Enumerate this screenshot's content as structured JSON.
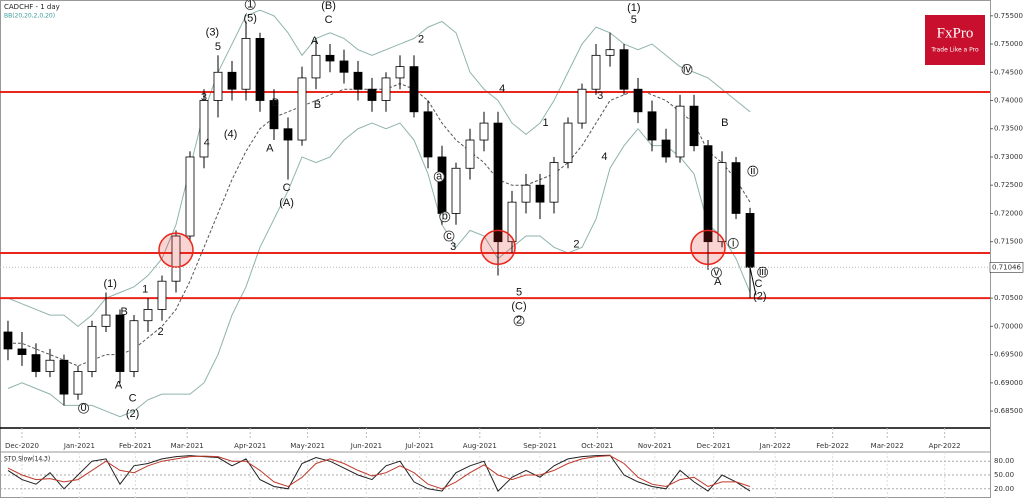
{
  "chart_data": {
    "type": "candlestick",
    "title": "CADCHF - 1 day",
    "subtitle": "BB(20,20,2,0,20)",
    "logo": {
      "name": "FxPro",
      "tagline": "Trade Like a Pro"
    },
    "x": [
      0,
      1,
      2,
      3,
      4,
      5,
      6,
      7,
      8,
      9,
      10,
      11,
      12,
      13,
      14,
      15,
      16,
      17,
      18,
      19,
      20,
      21,
      22,
      23,
      24,
      25,
      26,
      27,
      28,
      29,
      30,
      31,
      32,
      33,
      34,
      35,
      36,
      37,
      38,
      39,
      40,
      41,
      42,
      43,
      44,
      45,
      46,
      47,
      48,
      49,
      50,
      51,
      52,
      53
    ],
    "xlim": [
      -0.57,
      70.14
    ],
    "xticks": [
      {
        "value": 1.0,
        "label": "Dec-2020"
      },
      {
        "value": 5.1,
        "label": "Jan-2021"
      },
      {
        "value": 9.1,
        "label": "Feb-2021"
      },
      {
        "value": 12.8,
        "label": "Mar-2021"
      },
      {
        "value": 17.3,
        "label": "Apr-2021"
      },
      {
        "value": 21.4,
        "label": "May-2021"
      },
      {
        "value": 25.6,
        "label": "Jun-2021"
      },
      {
        "value": 29.4,
        "label": "Jul-2021"
      },
      {
        "value": 33.7,
        "label": "Aug-2021"
      },
      {
        "value": 38.0,
        "label": "Sep-2021"
      },
      {
        "value": 42.1,
        "label": "Oct-2021"
      },
      {
        "value": 46.2,
        "label": "Nov-2021"
      },
      {
        "value": 50.4,
        "label": "Dec-2021"
      },
      {
        "value": 54.8,
        "label": "Jan-2022"
      },
      {
        "value": 58.9,
        "label": "Feb-2022"
      },
      {
        "value": 62.8,
        "label": "Mar-2022"
      },
      {
        "value": 66.9,
        "label": "Apr-2022"
      }
    ],
    "ylim": [
      0.682,
      0.7578
    ],
    "yticks": [
      {
        "value": 0.755,
        "label": "0.75500"
      },
      {
        "value": 0.75,
        "label": "0.75000"
      },
      {
        "value": 0.745,
        "label": "0.74500"
      },
      {
        "value": 0.74,
        "label": "0.74000"
      },
      {
        "value": 0.735,
        "label": "0.73500"
      },
      {
        "value": 0.73,
        "label": "0.73000"
      },
      {
        "value": 0.725,
        "label": "0.72500"
      },
      {
        "value": 0.72,
        "label": "0.72000"
      },
      {
        "value": 0.715,
        "label": "0.71500"
      },
      {
        "value": 0.705,
        "label": "0.70500"
      },
      {
        "value": 0.7,
        "label": "0.70000"
      },
      {
        "value": 0.695,
        "label": "0.69500"
      },
      {
        "value": 0.69,
        "label": "0.69000"
      },
      {
        "value": 0.685,
        "label": "0.68500"
      }
    ],
    "open": [
      0.699,
      0.696,
      0.695,
      0.692,
      0.694,
      0.688,
      0.692,
      0.7,
      0.702,
      0.692,
      0.701,
      0.703,
      0.708,
      0.716,
      0.73,
      0.74,
      0.745,
      0.742,
      0.751,
      0.74,
      0.735,
      0.733,
      0.744,
      0.748,
      0.747,
      0.745,
      0.742,
      0.74,
      0.744,
      0.746,
      0.738,
      0.73,
      0.72,
      0.728,
      0.733,
      0.736,
      0.715,
      0.722,
      0.725,
      0.722,
      0.729,
      0.736,
      0.742,
      0.748,
      0.749,
      0.742,
      0.738,
      0.733,
      0.73,
      0.739,
      0.732,
      0.715,
      0.729,
      0.72
    ],
    "high": [
      0.701,
      0.699,
      0.697,
      0.696,
      0.695,
      0.693,
      0.701,
      0.706,
      0.703,
      0.702,
      0.705,
      0.709,
      0.717,
      0.731,
      0.742,
      0.748,
      0.747,
      0.754,
      0.752,
      0.742,
      0.737,
      0.746,
      0.751,
      0.75,
      0.749,
      0.747,
      0.744,
      0.745,
      0.748,
      0.748,
      0.74,
      0.732,
      0.729,
      0.735,
      0.738,
      0.738,
      0.724,
      0.727,
      0.727,
      0.73,
      0.737,
      0.743,
      0.75,
      0.752,
      0.75,
      0.744,
      0.74,
      0.735,
      0.741,
      0.741,
      0.733,
      0.731,
      0.73,
      0.721
    ],
    "low": [
      0.694,
      0.693,
      0.691,
      0.691,
      0.686,
      0.687,
      0.691,
      0.699,
      0.69,
      0.691,
      0.699,
      0.701,
      0.706,
      0.715,
      0.728,
      0.737,
      0.74,
      0.74,
      0.738,
      0.733,
      0.726,
      0.732,
      0.742,
      0.745,
      0.743,
      0.74,
      0.738,
      0.738,
      0.742,
      0.737,
      0.728,
      0.718,
      0.718,
      0.726,
      0.731,
      0.709,
      0.713,
      0.72,
      0.719,
      0.72,
      0.728,
      0.735,
      0.741,
      0.746,
      0.741,
      0.736,
      0.731,
      0.729,
      0.729,
      0.731,
      0.71,
      0.714,
      0.719,
      0.705
    ],
    "close": [
      0.696,
      0.695,
      0.692,
      0.694,
      0.688,
      0.692,
      0.7,
      0.702,
      0.692,
      0.701,
      0.703,
      0.708,
      0.716,
      0.73,
      0.74,
      0.745,
      0.742,
      0.751,
      0.74,
      0.735,
      0.733,
      0.744,
      0.748,
      0.747,
      0.745,
      0.742,
      0.74,
      0.744,
      0.746,
      0.738,
      0.73,
      0.72,
      0.728,
      0.733,
      0.736,
      0.715,
      0.722,
      0.725,
      0.722,
      0.729,
      0.736,
      0.742,
      0.748,
      0.749,
      0.742,
      0.738,
      0.733,
      0.73,
      0.739,
      0.732,
      0.715,
      0.729,
      0.72,
      0.71046
    ],
    "last_price": 0.71046,
    "bands": [
      {
        "name": "upper",
        "color": "#8fb3ae",
        "values": [
          0.705,
          0.704,
          0.703,
          0.702,
          0.702,
          0.7,
          0.702,
          0.705,
          0.706,
          0.707,
          0.709,
          0.712,
          0.718,
          0.728,
          0.738,
          0.745,
          0.75,
          0.755,
          0.756,
          0.755,
          0.752,
          0.748,
          0.751,
          0.752,
          0.751,
          0.749,
          0.748,
          0.749,
          0.75,
          0.751,
          0.753,
          0.754,
          0.752,
          0.745,
          0.742,
          0.74,
          0.736,
          0.734,
          0.736,
          0.74,
          0.745,
          0.75,
          0.753,
          0.752,
          0.75,
          0.749,
          0.75,
          0.748,
          0.746,
          0.745,
          0.744,
          0.742,
          0.74,
          0.738
        ]
      },
      {
        "name": "middle",
        "color": "#555555",
        "dashed": true,
        "values": [
          0.697,
          0.697,
          0.696,
          0.695,
          0.694,
          0.693,
          0.694,
          0.695,
          0.695,
          0.696,
          0.698,
          0.7,
          0.703,
          0.708,
          0.714,
          0.72,
          0.726,
          0.731,
          0.735,
          0.737,
          0.738,
          0.739,
          0.74,
          0.741,
          0.742,
          0.742,
          0.742,
          0.742,
          0.743,
          0.742,
          0.74,
          0.736,
          0.733,
          0.731,
          0.729,
          0.726,
          0.725,
          0.725,
          0.726,
          0.727,
          0.729,
          0.732,
          0.736,
          0.74,
          0.741,
          0.742,
          0.741,
          0.74,
          0.738,
          0.736,
          0.731,
          0.729,
          0.726,
          0.722
        ]
      },
      {
        "name": "lower",
        "color": "#8fb3ae",
        "values": [
          0.689,
          0.69,
          0.689,
          0.688,
          0.686,
          0.686,
          0.686,
          0.685,
          0.684,
          0.685,
          0.687,
          0.688,
          0.688,
          0.688,
          0.69,
          0.695,
          0.702,
          0.707,
          0.714,
          0.719,
          0.724,
          0.73,
          0.729,
          0.73,
          0.733,
          0.735,
          0.736,
          0.735,
          0.736,
          0.733,
          0.727,
          0.718,
          0.714,
          0.717,
          0.716,
          0.712,
          0.714,
          0.716,
          0.716,
          0.714,
          0.713,
          0.714,
          0.719,
          0.728,
          0.732,
          0.735,
          0.732,
          0.732,
          0.73,
          0.727,
          0.718,
          0.716,
          0.712,
          0.706
        ]
      }
    ],
    "levels": [
      0.7415,
      0.713,
      0.705
    ],
    "level_color": "#e8261c",
    "circles": [
      {
        "x": 12,
        "y": 0.7135
      },
      {
        "x": 35,
        "y": 0.714
      },
      {
        "x": 50,
        "y": 0.714
      }
    ],
    "annotations": [
      {
        "text": "(1)",
        "x": 7.3,
        "y": 0.7075
      },
      {
        "text": "(2)",
        "x": 8.9,
        "y": 0.6845
      },
      {
        "text": "0",
        "x": 5.4,
        "y": 0.6855,
        "circled": true
      },
      {
        "text": "A",
        "x": 7.9,
        "y": 0.6895
      },
      {
        "text": "B",
        "x": 8.3,
        "y": 0.7025
      },
      {
        "text": "C",
        "x": 8.9,
        "y": 0.6872
      },
      {
        "text": "1",
        "x": 9.8,
        "y": 0.7065
      },
      {
        "text": "2",
        "x": 10.9,
        "y": 0.699
      },
      {
        "text": "(3)",
        "x": 14.6,
        "y": 0.752
      },
      {
        "text": "5",
        "x": 15.0,
        "y": 0.7495
      },
      {
        "text": "3",
        "x": 14.0,
        "y": 0.7405
      },
      {
        "text": "4",
        "x": 14.2,
        "y": 0.7325
      },
      {
        "text": "(4)",
        "x": 15.9,
        "y": 0.734
      },
      {
        "text": "1",
        "x": 17.3,
        "y": 0.757,
        "circled": true
      },
      {
        "text": "(5)",
        "x": 17.3,
        "y": 0.7545
      },
      {
        "text": "B",
        "x": 19.1,
        "y": 0.7395
      },
      {
        "text": "A",
        "x": 18.7,
        "y": 0.7315
      },
      {
        "text": "C",
        "x": 19.9,
        "y": 0.7245
      },
      {
        "text": "(A)",
        "x": 19.9,
        "y": 0.7218
      },
      {
        "text": "A",
        "x": 21.9,
        "y": 0.7505
      },
      {
        "text": "B",
        "x": 22.1,
        "y": 0.7392
      },
      {
        "text": "(B)",
        "x": 22.9,
        "y": 0.7567
      },
      {
        "text": "C",
        "x": 22.9,
        "y": 0.7542
      },
      {
        "text": "2",
        "x": 29.5,
        "y": 0.7508
      },
      {
        "text": "3",
        "x": 31.8,
        "y": 0.714
      },
      {
        "text": "4",
        "x": 35.3,
        "y": 0.742
      },
      {
        "text": "5",
        "x": 36.5,
        "y": 0.706
      },
      {
        "text": "(C)",
        "x": 36.5,
        "y": 0.7035
      },
      {
        "text": "2",
        "x": 36.5,
        "y": 0.701,
        "circled": true
      },
      {
        "text": "1",
        "x": 38.4,
        "y": 0.736
      },
      {
        "text": "2",
        "x": 40.6,
        "y": 0.7145
      },
      {
        "text": "3",
        "x": 42.3,
        "y": 0.7408
      },
      {
        "text": "4",
        "x": 42.6,
        "y": 0.73
      },
      {
        "text": "(1)",
        "x": 44.7,
        "y": 0.7564
      },
      {
        "text": "5",
        "x": 44.7,
        "y": 0.7542
      },
      {
        "text": "B",
        "x": 51.2,
        "y": 0.736
      },
      {
        "text": "A",
        "x": 50.7,
        "y": 0.7078
      },
      {
        "text": "C",
        "x": 53.6,
        "y": 0.7075
      },
      {
        "text": "(2)",
        "x": 53.7,
        "y": 0.7053
      },
      {
        "text": "a",
        "x": 30.8,
        "y": 0.7265,
        "circled": true
      },
      {
        "text": "b",
        "x": 31.2,
        "y": 0.7194,
        "circled": true
      },
      {
        "text": "c",
        "x": 31.5,
        "y": 0.716,
        "circled": true
      },
      {
        "text": "iv",
        "x": 48.5,
        "y": 0.7455,
        "circled": true
      },
      {
        "text": "v",
        "x": 50.6,
        "y": 0.7095,
        "circled": true
      },
      {
        "text": "ii",
        "x": 53.2,
        "y": 0.7275,
        "circled": true
      },
      {
        "text": "i",
        "x": 51.8,
        "y": 0.7147,
        "circled": true
      },
      {
        "text": "iii",
        "x": 53.9,
        "y": 0.7096,
        "circled": true
      }
    ],
    "oscillator": {
      "title": "STO Slow(14,3)",
      "ylim": [
        0,
        100
      ],
      "yticks": [
        {
          "value": 80,
          "label": "80.00"
        },
        {
          "value": 50,
          "label": "50.00"
        },
        {
          "value": 20,
          "label": "20.00"
        }
      ],
      "series": [
        {
          "name": "K",
          "color": "#222222",
          "values": [
            60,
            40,
            30,
            55,
            20,
            50,
            80,
            85,
            30,
            70,
            75,
            85,
            90,
            92,
            90,
            88,
            70,
            85,
            40,
            25,
            20,
            75,
            88,
            80,
            65,
            50,
            40,
            70,
            80,
            35,
            20,
            15,
            55,
            70,
            80,
            15,
            45,
            60,
            45,
            70,
            85,
            90,
            92,
            93,
            50,
            35,
            25,
            20,
            60,
            35,
            15,
            50,
            35,
            15
          ]
        },
        {
          "name": "D",
          "color": "#c0392b",
          "values": [
            65,
            50,
            40,
            42,
            35,
            40,
            60,
            80,
            60,
            55,
            70,
            80,
            85,
            90,
            91,
            90,
            80,
            80,
            60,
            35,
            25,
            45,
            75,
            85,
            75,
            60,
            48,
            55,
            70,
            55,
            30,
            20,
            35,
            55,
            72,
            50,
            40,
            50,
            50,
            60,
            75,
            85,
            90,
            92,
            75,
            45,
            30,
            25,
            40,
            45,
            25,
            35,
            35,
            25
          ]
        }
      ]
    }
  }
}
